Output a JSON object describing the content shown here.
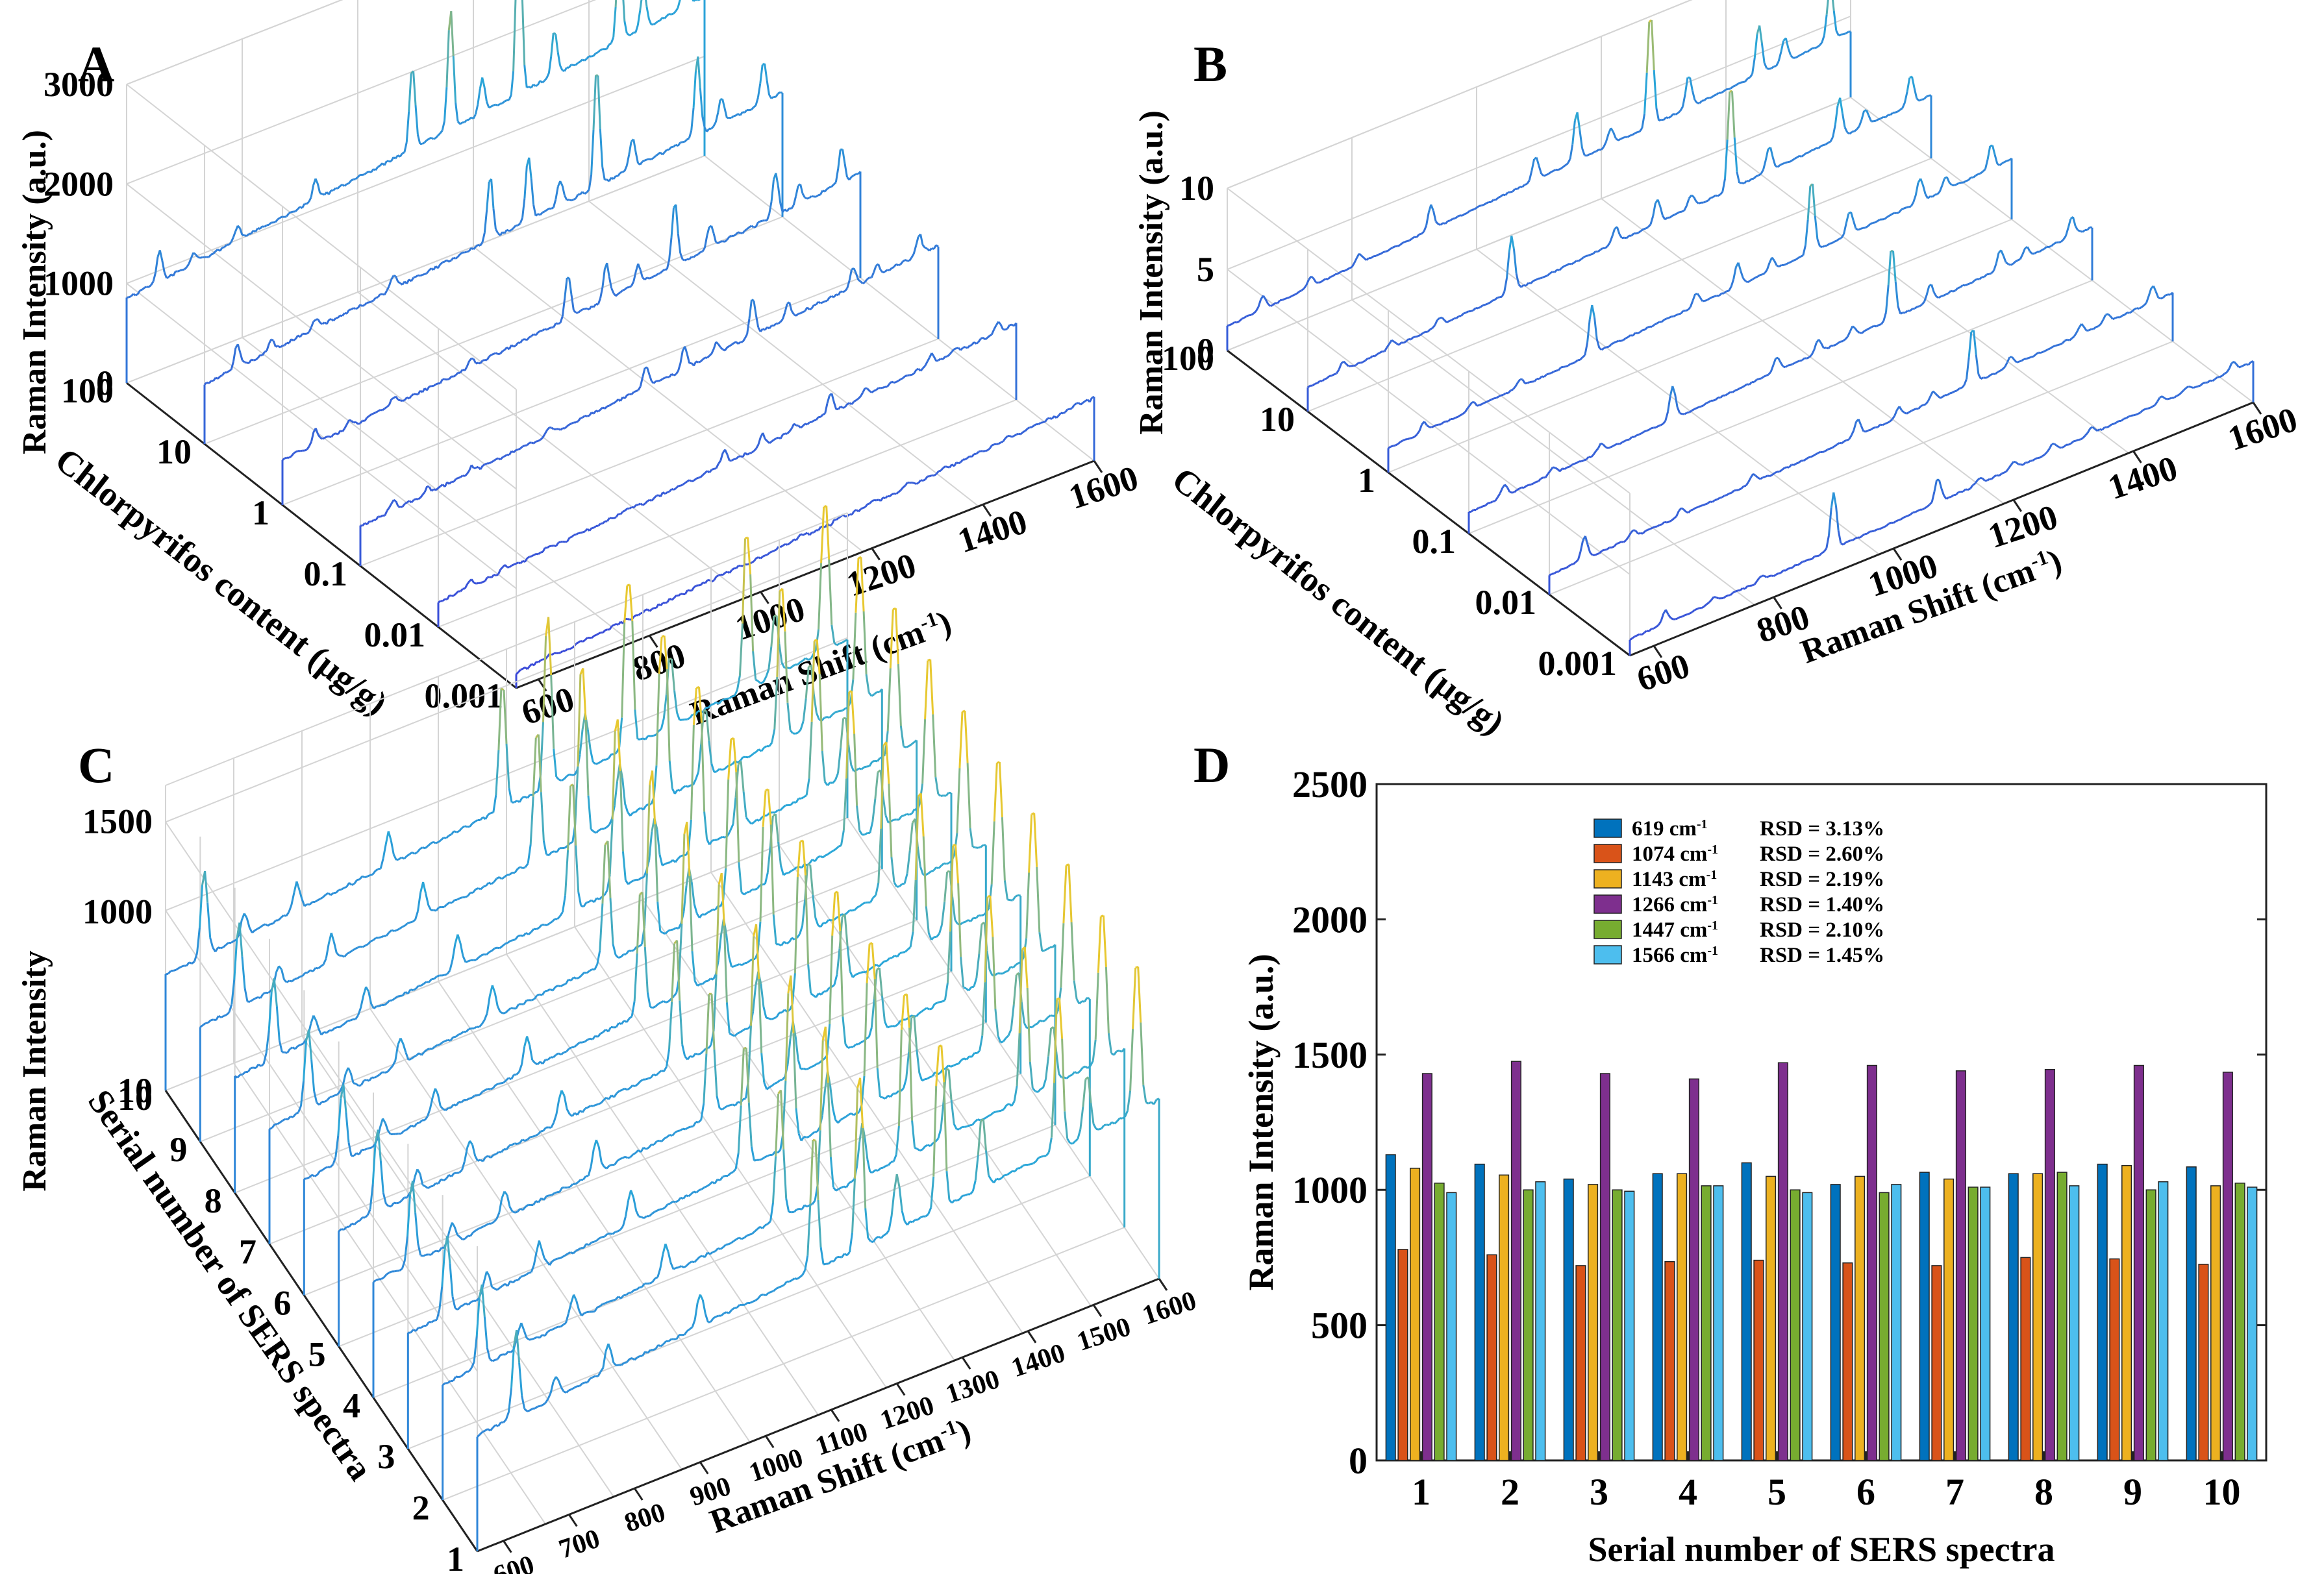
{
  "chart_data": [
    {
      "panel": "A",
      "type": "line",
      "projection": "3d-waterfall",
      "zlabel": "Raman Intensity (a.u.)",
      "ylabel": "Chlorpyrifos content (μg/g)",
      "xlabel": "Raman Shift (cm",
      "xlabel_sup": "-1",
      "xlabel_end": ")",
      "x_range": [
        560,
        1600
      ],
      "z_range": [
        0,
        3000
      ],
      "x_ticks": [
        "600",
        "800",
        "1000",
        "1200",
        "1400",
        "1600"
      ],
      "y_ticks": [
        "0.001",
        "0.01",
        "0.1",
        "1",
        "10",
        "100"
      ],
      "z_ticks": [
        "0",
        "1000",
        "2000",
        "3000"
      ],
      "peak_positions": [
        619,
        680,
        760,
        900,
        1074,
        1143,
        1200,
        1266,
        1330,
        1447,
        1490,
        1566
      ],
      "series": [
        {
          "name": "0.001",
          "baseline": 150,
          "slope": 480,
          "peaks": [
            20,
            10,
            10,
            10,
            30,
            40,
            20,
            50,
            20,
            30,
            20,
            40
          ]
        },
        {
          "name": "0.01",
          "baseline": 250,
          "slope": 520,
          "peaks": [
            60,
            40,
            40,
            40,
            140,
            120,
            60,
            200,
            80,
            100,
            60,
            100
          ]
        },
        {
          "name": "0.1",
          "baseline": 400,
          "slope": 540,
          "peaks": [
            100,
            60,
            60,
            60,
            220,
            230,
            100,
            380,
            150,
            200,
            100,
            200
          ]
        },
        {
          "name": "1",
          "baseline": 450,
          "slope": 600,
          "peaks": [
            150,
            80,
            80,
            80,
            450,
            380,
            200,
            650,
            250,
            450,
            200,
            350
          ]
        },
        {
          "name": "10",
          "baseline": 600,
          "slope": 650,
          "peaks": [
            250,
            100,
            100,
            150,
            650,
            650,
            250,
            1200,
            300,
            800,
            250,
            400
          ]
        },
        {
          "name": "100",
          "baseline": 850,
          "slope": 750,
          "peaks": [
            300,
            100,
            150,
            200,
            850,
            1200,
            350,
            2000,
            450,
            950,
            400,
            650
          ]
        }
      ]
    },
    {
      "panel": "B",
      "type": "line",
      "projection": "3d-waterfall",
      "zlabel": "Raman Intensity (a.u.)",
      "ylabel": "Chlorpyrifos content (μg/g)",
      "xlabel": "Raman Shift (cm",
      "xlabel_sup": "-1",
      "xlabel_end": ")",
      "x_range": [
        560,
        1600
      ],
      "z_range": [
        0,
        10
      ],
      "x_ticks": [
        "600",
        "800",
        "1000",
        "1200",
        "1400",
        "1600"
      ],
      "y_ticks": [
        "0.001",
        "0.01",
        "0.1",
        "1",
        "10",
        "100"
      ],
      "z_ticks": [
        "0",
        "5",
        "10"
      ],
      "peak_positions": [
        619,
        700,
        780,
        900,
        1074,
        1143,
        1200,
        1266,
        1330,
        1447,
        1490,
        1566
      ],
      "series": [
        {
          "name": "0.001",
          "baseline": 1.0,
          "slope": 1.5,
          "peaks": [
            0.8,
            0.3,
            0.3,
            3.5,
            1.5,
            0.4,
            0.4,
            0.5,
            0.4,
            0.4,
            0.3,
            0.6
          ]
        },
        {
          "name": "0.01",
          "baseline": 1.2,
          "slope": 1.8,
          "peaks": [
            1.4,
            0.4,
            0.4,
            0.6,
            1.0,
            0.6,
            0.6,
            3.5,
            0.6,
            0.6,
            0.6,
            1.0
          ]
        },
        {
          "name": "0.1",
          "baseline": 1.3,
          "slope": 2.0,
          "peaks": [
            0.7,
            0.4,
            0.5,
            2.0,
            0.9,
            0.8,
            0.6,
            4.5,
            1.0,
            1.2,
            0.6,
            1.2
          ]
        },
        {
          "name": "1",
          "baseline": 1.5,
          "slope": 2.2,
          "peaks": [
            0.6,
            0.5,
            0.5,
            3.0,
            0.8,
            1.5,
            0.8,
            4.5,
            1.5,
            1.5,
            0.8,
            1.5
          ]
        },
        {
          "name": "10",
          "baseline": 1.5,
          "slope": 2.4,
          "peaks": [
            0.6,
            0.5,
            0.5,
            3.5,
            1.0,
            1.5,
            0.8,
            6.5,
            1.5,
            2.5,
            1.0,
            1.8
          ]
        },
        {
          "name": "100",
          "baseline": 1.5,
          "slope": 2.6,
          "peaks": [
            0.8,
            0.6,
            0.6,
            1.5,
            1.5,
            3.0,
            1.0,
            7.0,
            2.0,
            3.0,
            1.5,
            3.5
          ]
        }
      ]
    },
    {
      "panel": "C",
      "type": "line",
      "projection": "3d-waterfall",
      "zlabel": "Raman Intensity",
      "ylabel": "Serial number of SERS spectra",
      "xlabel": "Raman Shift (cm",
      "xlabel_sup": "-1",
      "xlabel_end": ")",
      "x_range": [
        560,
        1600
      ],
      "z_range": [
        10,
        1700
      ],
      "x_ticks": [
        "600",
        "700",
        "800",
        "900",
        "1000",
        "1100",
        "1200",
        "1300",
        "1400",
        "1500",
        "1600"
      ],
      "y_ticks": [
        "1",
        "2",
        "3",
        "4",
        "5",
        "6",
        "7",
        "8",
        "9",
        "10"
      ],
      "z_ticks": [
        "10",
        "1000",
        "1500"
      ],
      "peak_positions": [
        619,
        680,
        760,
        900,
        1074,
        1143,
        1200,
        1266,
        1330,
        1447,
        1490,
        1566
      ],
      "series": [
        {
          "name": "1",
          "baseline": 650,
          "slope": 350,
          "peaks": [
            480,
            120,
            150,
            180,
            780,
            1080,
            300,
            1430,
            400,
            1020,
            350,
            990
          ]
        },
        {
          "name": "2",
          "baseline": 650,
          "slope": 350,
          "peaks": [
            450,
            120,
            150,
            180,
            760,
            1050,
            300,
            1470,
            400,
            1000,
            350,
            1030
          ]
        },
        {
          "name": "3",
          "baseline": 650,
          "slope": 350,
          "peaks": [
            440,
            120,
            150,
            180,
            720,
            1020,
            300,
            1430,
            400,
            1000,
            350,
            995
          ]
        },
        {
          "name": "4",
          "baseline": 650,
          "slope": 350,
          "peaks": [
            460,
            120,
            150,
            180,
            740,
            1060,
            300,
            1410,
            400,
            1010,
            350,
            1010
          ]
        },
        {
          "name": "5",
          "baseline": 650,
          "slope": 350,
          "peaks": [
            470,
            120,
            150,
            180,
            740,
            1050,
            300,
            1470,
            400,
            1000,
            350,
            990
          ]
        },
        {
          "name": "6",
          "baseline": 650,
          "slope": 350,
          "peaks": [
            420,
            120,
            150,
            180,
            730,
            1050,
            300,
            1460,
            400,
            990,
            350,
            1020
          ]
        },
        {
          "name": "7",
          "baseline": 650,
          "slope": 350,
          "peaks": [
            460,
            120,
            150,
            180,
            720,
            1040,
            300,
            1440,
            400,
            1000,
            350,
            1010
          ]
        },
        {
          "name": "8",
          "baseline": 650,
          "slope": 350,
          "peaks": [
            460,
            120,
            150,
            180,
            750,
            1060,
            300,
            1450,
            400,
            1060,
            350,
            1015
          ]
        },
        {
          "name": "9",
          "baseline": 650,
          "slope": 350,
          "peaks": [
            470,
            120,
            150,
            180,
            750,
            1090,
            300,
            1460,
            400,
            1000,
            350,
            1030
          ]
        },
        {
          "name": "10",
          "baseline": 650,
          "slope": 350,
          "peaks": [
            480,
            120,
            150,
            180,
            720,
            1015,
            300,
            1440,
            400,
            1025,
            350,
            1010
          ]
        }
      ]
    },
    {
      "panel": "D",
      "type": "bar",
      "title": "",
      "xlabel": "Serial number of SERS spectra",
      "ylabel": "Raman Intensity (a.u.)",
      "ylim": [
        0,
        2500
      ],
      "y_ticks": [
        "0",
        "500",
        "1000",
        "1500",
        "2000",
        "2500"
      ],
      "categories": [
        "1",
        "2",
        "3",
        "4",
        "5",
        "6",
        "7",
        "8",
        "9",
        "10"
      ],
      "legend_position": "top-center",
      "series": [
        {
          "name": "619 cm",
          "sup": "-1",
          "rsd": "RSD = 3.13%",
          "color": "#0072BD",
          "values": [
            1130,
            1095,
            1040,
            1060,
            1100,
            1020,
            1065,
            1060,
            1095,
            1085
          ]
        },
        {
          "name": "1074 cm",
          "sup": "-1",
          "rsd": "RSD = 2.60%",
          "color": "#D95319",
          "values": [
            780,
            760,
            720,
            735,
            740,
            730,
            720,
            750,
            745,
            725
          ]
        },
        {
          "name": "1143 cm",
          "sup": "-1",
          "rsd": "RSD = 2.19%",
          "color": "#EDB120",
          "values": [
            1080,
            1055,
            1020,
            1060,
            1050,
            1050,
            1040,
            1060,
            1090,
            1015
          ]
        },
        {
          "name": "1266 cm",
          "sup": "-1",
          "rsd": "RSD = 1.40%",
          "color": "#7E2F8E",
          "values": [
            1430,
            1475,
            1430,
            1410,
            1470,
            1460,
            1440,
            1445,
            1460,
            1435
          ]
        },
        {
          "name": "1447 cm",
          "sup": "-1",
          "rsd": "RSD = 2.10%",
          "color": "#77AC30",
          "values": [
            1025,
            1000,
            1000,
            1015,
            1000,
            990,
            1010,
            1065,
            1000,
            1025
          ]
        },
        {
          "name": "1566 cm",
          "sup": "-1",
          "rsd": "RSD = 1.45%",
          "color": "#4DBEEE",
          "values": [
            990,
            1030,
            995,
            1015,
            990,
            1020,
            1010,
            1015,
            1030,
            1010
          ]
        }
      ]
    }
  ],
  "panel_labels": [
    "A",
    "B",
    "C",
    "D"
  ],
  "colors": {
    "low": "#3b3fd8",
    "mid": "#2aa7d8",
    "high": "#e8c830",
    "grid": "#d4d4d4"
  }
}
